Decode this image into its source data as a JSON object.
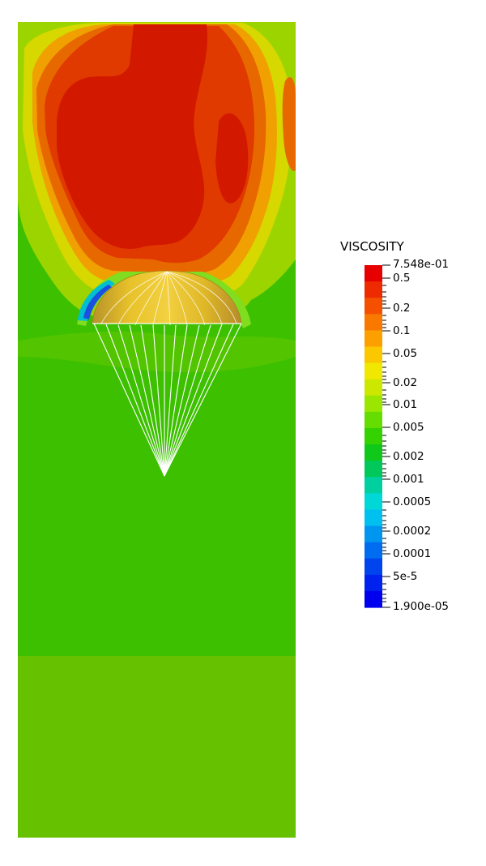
{
  "legend": {
    "title": "VISCOSITY",
    "max_label": "7.548e-01",
    "min_label": "1.900e-05",
    "tick_labels": [
      "0.5",
      "0.2",
      "0.1",
      "0.05",
      "0.02",
      "0.01",
      "0.005",
      "0.002",
      "0.001",
      "0.0005",
      "0.0002",
      "0.0001",
      "5e-5"
    ],
    "band_colors": [
      "#e60000",
      "#ee2a00",
      "#f45000",
      "#f87800",
      "#fca000",
      "#fbc800",
      "#f0e800",
      "#cce800",
      "#9ae600",
      "#66dd00",
      "#33d200",
      "#10c81a",
      "#00c85a",
      "#00d0a0",
      "#00d8d8",
      "#00c0f0",
      "#0096f0",
      "#006cf0",
      "#0044ee",
      "#0022ee",
      "#0000ee"
    ]
  },
  "field_colors": {
    "background_upper": "#3cc000",
    "background_lower": "#66c100",
    "high": "#d31800",
    "canopy": "#ddb520",
    "suspension_lines": "#ffffff"
  }
}
